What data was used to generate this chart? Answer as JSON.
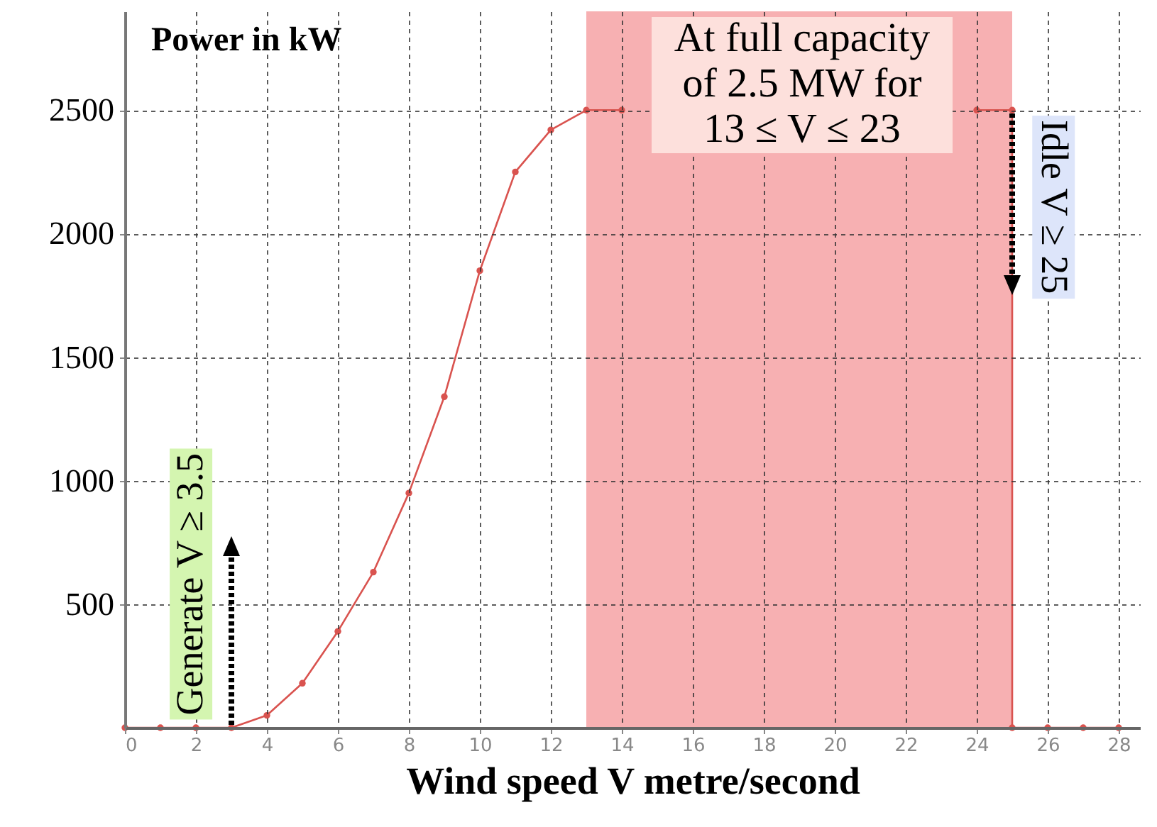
{
  "chart_data": {
    "type": "line",
    "xlabel": "Wind speed V metre/second",
    "ylabel": "Power in kW",
    "x": [
      0,
      1,
      2,
      3,
      4,
      5,
      6,
      7,
      8,
      9,
      10,
      11,
      12,
      13,
      14,
      15,
      16,
      17,
      18,
      19,
      20,
      21,
      22,
      23,
      24,
      25,
      25,
      26,
      27,
      28
    ],
    "series": [
      {
        "color": "#d9534f",
        "values": [
          0,
          0,
          0,
          0,
          50,
          180,
          390,
          630,
          950,
          1340,
          1850,
          2250,
          2420,
          2500,
          2500,
          null,
          null,
          null,
          null,
          null,
          null,
          null,
          null,
          null,
          2500,
          2500,
          0,
          0,
          0,
          0
        ]
      }
    ],
    "xlim": [
      0,
      28.6
    ],
    "xticks": [
      0,
      2,
      4,
      6,
      8,
      10,
      12,
      14,
      16,
      18,
      20,
      22,
      24,
      26,
      28
    ],
    "ylim": [
      0,
      2900
    ],
    "yticks": [
      500,
      1000,
      1500,
      2000,
      2500
    ],
    "grid": true,
    "marker": "circle",
    "line_style": "solid",
    "bands": [
      {
        "axis": "x",
        "from": 13,
        "to": 25,
        "label": "At full capacity of 2.5 MW for 13 ≤ V ≤ 23",
        "color": "#f7b0b2"
      }
    ],
    "annotations": [
      {
        "text": "Generate V ≥ 3.5",
        "x": 3,
        "y": 0
      },
      {
        "text": "Idle V ≥ 25",
        "x": 25,
        "y": 2500
      }
    ]
  }
}
